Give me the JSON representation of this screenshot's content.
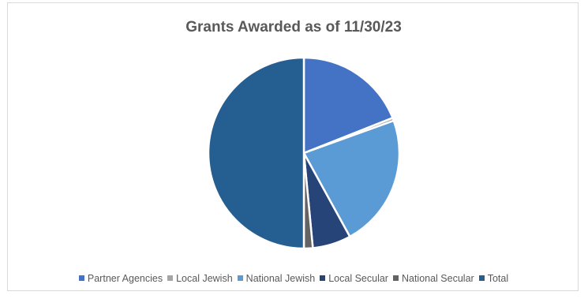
{
  "chart_data": {
    "type": "pie",
    "title": "Grants Awarded as of 11/30/23",
    "legend_position": "bottom",
    "slices": [
      {
        "name": "Partner Agencies",
        "value": 19.0,
        "color": "#4472c4"
      },
      {
        "name": "Local Jewish",
        "value": 0.5,
        "color": "#a5a5a5"
      },
      {
        "name": "National Jewish",
        "value": 22.5,
        "color": "#5b9bd5"
      },
      {
        "name": "Local Secular",
        "value": 6.5,
        "color": "#264478"
      },
      {
        "name": "National Secular",
        "value": 1.5,
        "color": "#636363"
      },
      {
        "name": "Total",
        "value": 50.0,
        "color": "#255e91"
      }
    ]
  }
}
